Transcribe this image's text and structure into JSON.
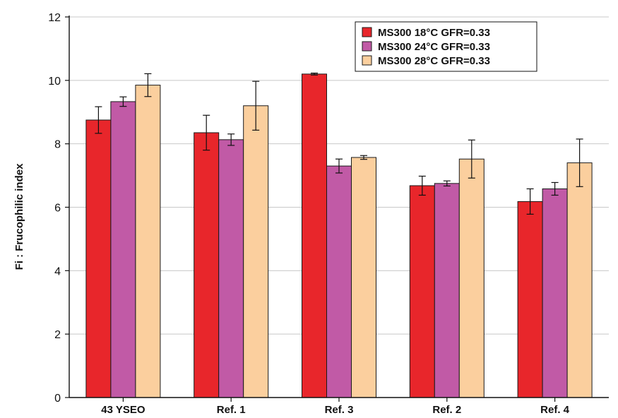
{
  "chart_data": {
    "type": "bar",
    "title": "",
    "xlabel": "",
    "ylabel": "Fi : Frucophilic index",
    "ylim": [
      0,
      12
    ],
    "yticks": [
      "0",
      "2",
      "4",
      "6",
      "8",
      "10",
      "12"
    ],
    "grid": true,
    "legend_position": "top-right",
    "categories": [
      "43 YSEO",
      "Ref. 1",
      "Ref. 3",
      "Ref. 2",
      "Ref. 4"
    ],
    "series": [
      {
        "name": "MS300 18°C GFR=0.33",
        "color": "#e8262b",
        "values": [
          8.75,
          8.35,
          10.2,
          6.68,
          6.18
        ],
        "errors": [
          0.42,
          0.55,
          0.03,
          0.3,
          0.4
        ]
      },
      {
        "name": "MS300 24°C GFR=0.33",
        "color": "#c15aa6",
        "values": [
          9.33,
          8.13,
          7.3,
          6.75,
          6.58
        ],
        "errors": [
          0.15,
          0.18,
          0.22,
          0.08,
          0.2
        ]
      },
      {
        "name": "MS300 28°C GFR=0.33",
        "color": "#fbcf9e",
        "values": [
          9.85,
          9.2,
          7.57,
          7.52,
          7.4
        ],
        "errors": [
          0.36,
          0.77,
          0.06,
          0.6,
          0.75
        ]
      }
    ]
  }
}
